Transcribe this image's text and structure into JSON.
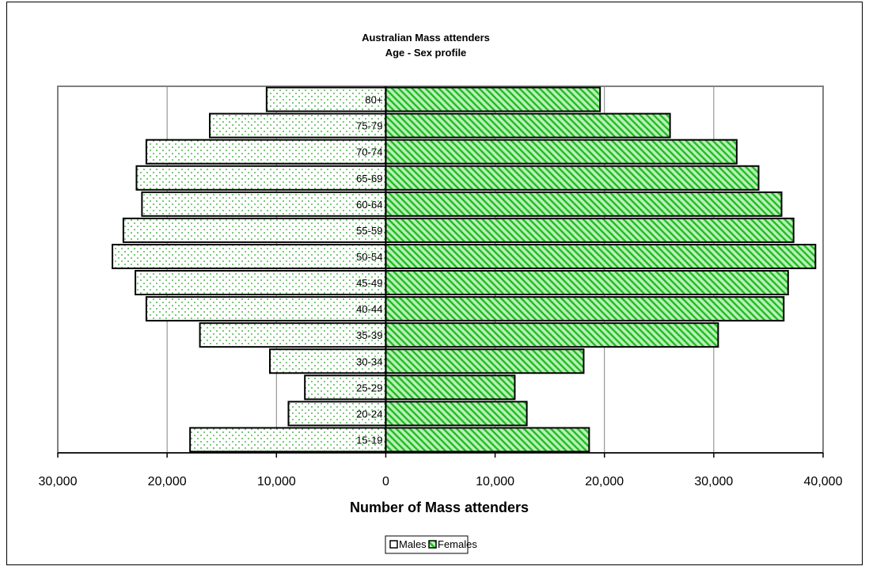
{
  "chart_data": {
    "type": "bar",
    "orientation": "horizontal-pyramid",
    "title": "Australian Mass attenders",
    "subtitle": "Age - Sex profile",
    "xlabel": "Number of Mass attenders",
    "xlim": [
      -30000,
      40000
    ],
    "xticks": [
      -30000,
      -20000,
      -10000,
      0,
      10000,
      20000,
      30000,
      40000
    ],
    "xtick_labels": [
      "30,000",
      "20,000",
      "10,000",
      "0",
      "10,000",
      "20,000",
      "30,000",
      "40,000"
    ],
    "categories": [
      "15-19",
      "20-24",
      "25-29",
      "30-34",
      "35-39",
      "40-44",
      "45-49",
      "50-54",
      "55-59",
      "60-64",
      "65-69",
      "70-74",
      "75-79",
      "80+"
    ],
    "series": [
      {
        "name": "Males",
        "values": [
          17900,
          8900,
          7400,
          10600,
          17000,
          21900,
          22900,
          25000,
          24000,
          22300,
          22800,
          21900,
          16100,
          10900
        ]
      },
      {
        "name": "Females",
        "values": [
          18600,
          12900,
          11800,
          18100,
          30400,
          36400,
          36800,
          39300,
          37300,
          36200,
          34100,
          32100,
          26000,
          19600
        ]
      }
    ],
    "grid": "vertical",
    "legend": "bottom-center",
    "colors": {
      "males_fill": "#ffffff",
      "males_dots": "#1aa31a",
      "females_fill": "#b7f0b7",
      "females_stripes": "#22bb22"
    }
  }
}
